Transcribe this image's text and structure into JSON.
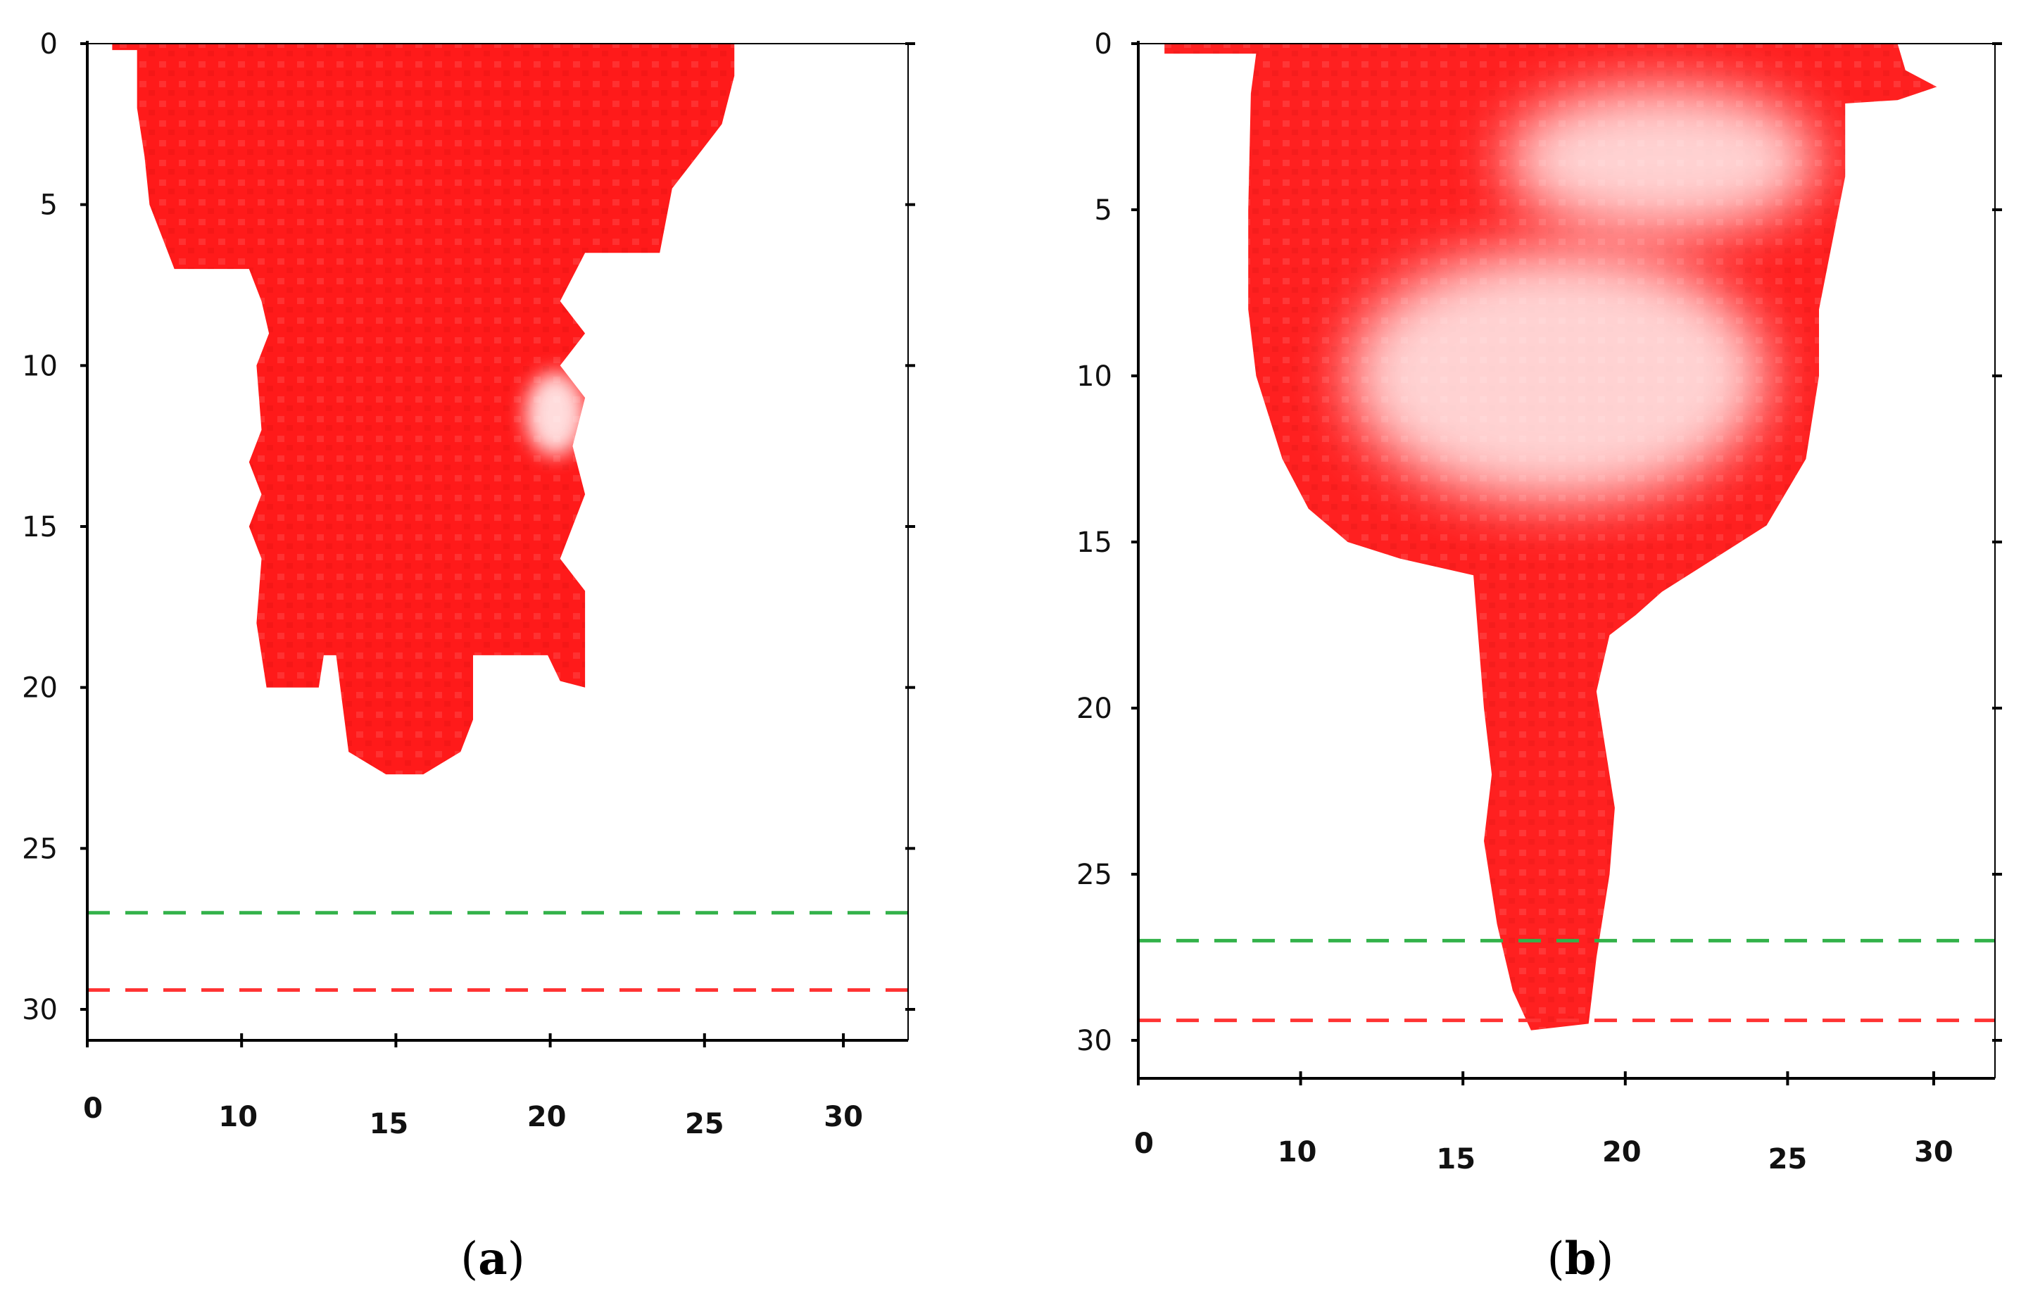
{
  "chart_data": [
    {
      "panel": "a",
      "label_open": "(",
      "label_letter": "a",
      "label_close": ")",
      "type": "heatmap",
      "xlim": [
        0,
        31
      ],
      "ylim": [
        32,
        0
      ],
      "x_ticks": [
        0,
        10,
        15,
        20,
        25,
        30
      ],
      "y_ticks": [
        0,
        5,
        10,
        15,
        20,
        25,
        30
      ],
      "grid": false,
      "plume_color": "#ff1a1a",
      "plume_outline": [
        [
          1,
          0
        ],
        [
          26,
          0
        ],
        [
          26,
          1
        ],
        [
          25.5,
          2.5
        ],
        [
          24.5,
          3.5
        ],
        [
          23.5,
          4.5
        ],
        [
          23,
          6.5
        ],
        [
          20,
          6.5
        ],
        [
          19,
          8
        ],
        [
          20,
          9
        ],
        [
          19,
          10
        ],
        [
          20,
          11
        ],
        [
          19.5,
          12.5
        ],
        [
          20,
          14
        ],
        [
          19,
          16
        ],
        [
          20,
          17
        ],
        [
          20,
          20
        ],
        [
          19,
          19.8
        ],
        [
          18.5,
          19
        ],
        [
          15.5,
          19
        ],
        [
          15.5,
          21
        ],
        [
          15,
          22
        ],
        [
          13.5,
          22.7
        ],
        [
          12,
          22.7
        ],
        [
          10.5,
          22
        ],
        [
          10,
          19
        ],
        [
          9.5,
          19
        ],
        [
          9.3,
          20
        ],
        [
          7.2,
          20
        ],
        [
          6.8,
          18
        ],
        [
          7,
          16
        ],
        [
          6.5,
          15
        ],
        [
          7,
          14
        ],
        [
          6.5,
          13
        ],
        [
          7,
          12
        ],
        [
          6.8,
          10
        ],
        [
          7.3,
          9
        ],
        [
          7,
          8
        ],
        [
          6.5,
          7
        ],
        [
          3.5,
          7
        ],
        [
          3,
          6
        ],
        [
          2.5,
          5
        ],
        [
          2.3,
          3.5
        ],
        [
          2,
          2
        ],
        [
          2,
          0.2
        ],
        [
          1,
          0.2
        ]
      ],
      "light_spots": [
        {
          "x": 18.8,
          "y": 11.5,
          "rx": 1.2,
          "ry": 1.3
        }
      ],
      "lines": [
        {
          "y": 27,
          "color": "#33b24a",
          "style": "dashed"
        },
        {
          "y": 29.4,
          "color": "#ff3333",
          "style": "dashed"
        }
      ]
    },
    {
      "panel": "b",
      "label_open": "(",
      "label_letter": "b",
      "label_close": ")",
      "type": "heatmap",
      "xlim": [
        0,
        31
      ],
      "ylim": [
        32,
        0
      ],
      "x_ticks": [
        0,
        10,
        15,
        20,
        25,
        30
      ],
      "y_ticks": [
        0,
        5,
        10,
        15,
        20,
        25,
        30
      ],
      "grid": false,
      "plume_color": "#ff2020",
      "plume_outline": [
        [
          1,
          0
        ],
        [
          29,
          0
        ],
        [
          29.3,
          0.8
        ],
        [
          30.5,
          1.3
        ],
        [
          29,
          1.7
        ],
        [
          27,
          1.8
        ],
        [
          27,
          4
        ],
        [
          26.5,
          6
        ],
        [
          26,
          8
        ],
        [
          26,
          10
        ],
        [
          25.5,
          12.5
        ],
        [
          24,
          14.5
        ],
        [
          22,
          15.5
        ],
        [
          20,
          16.5
        ],
        [
          19,
          17.2
        ],
        [
          18,
          17.8
        ],
        [
          17.5,
          19.5
        ],
        [
          17.8,
          21
        ],
        [
          18.2,
          23
        ],
        [
          18,
          25
        ],
        [
          17.5,
          27.5
        ],
        [
          17.2,
          29.5
        ],
        [
          15,
          29.7
        ],
        [
          14.3,
          28.5
        ],
        [
          13.7,
          26.5
        ],
        [
          13.2,
          24
        ],
        [
          13.5,
          22
        ],
        [
          13.2,
          20
        ],
        [
          13,
          18
        ],
        [
          12.8,
          16
        ],
        [
          10,
          15.5
        ],
        [
          8,
          15
        ],
        [
          6.5,
          14
        ],
        [
          5.5,
          12.5
        ],
        [
          4.5,
          10
        ],
        [
          4.2,
          8
        ],
        [
          4.2,
          5
        ],
        [
          4.3,
          1.5
        ],
        [
          4.5,
          0.3
        ],
        [
          1,
          0.3
        ]
      ],
      "light_spots": [
        {
          "x": 16,
          "y": 10,
          "rx": 8,
          "ry": 3.8
        },
        {
          "x": 20,
          "y": 3.5,
          "rx": 6,
          "ry": 2.2
        }
      ],
      "lines": [
        {
          "y": 27,
          "color": "#33b24a",
          "style": "dashed"
        },
        {
          "y": 29.4,
          "color": "#ff3333",
          "style": "dashed"
        }
      ]
    }
  ]
}
